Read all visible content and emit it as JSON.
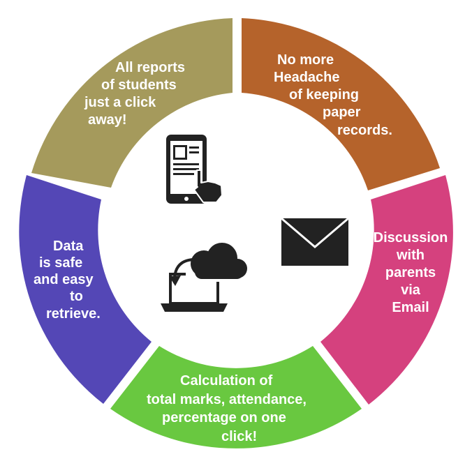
{
  "segments": [
    {
      "id": "reports",
      "color": "#a59a5c",
      "lines": [
        "All reports",
        "of students",
        "just a click",
        "away!"
      ]
    },
    {
      "id": "paper",
      "color": "#b5632b",
      "lines": [
        "No more",
        "Headache",
        "of keeping",
        "paper",
        "records."
      ]
    },
    {
      "id": "email",
      "color": "#d5417e",
      "lines": [
        "Discussion",
        "with",
        "parents",
        "via",
        "Email"
      ]
    },
    {
      "id": "calc",
      "color": "#69c840",
      "lines": [
        "Calculation of",
        "total marks, attendance,",
        "percentage on one",
        "click!"
      ]
    },
    {
      "id": "data",
      "color": "#5447b6",
      "lines": [
        "Data",
        "is  safe",
        "and easy",
        "to",
        "retrieve."
      ]
    }
  ],
  "icons": [
    "smartphone-touch-icon",
    "envelope-icon",
    "cloud-laptop-icon"
  ]
}
